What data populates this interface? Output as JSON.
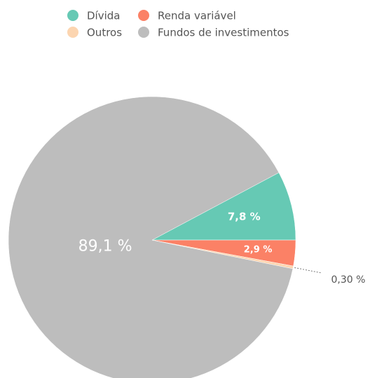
{
  "chart_data": {
    "type": "pie",
    "categories": [
      "Dívida",
      "Renda variável",
      "Outros",
      "Fundos de investimentos"
    ],
    "values": [
      7.8,
      2.9,
      0.3,
      89.1
    ],
    "value_labels": [
      "7,8 %",
      "2,9 %",
      "0,30 %",
      "89,1 %"
    ],
    "colors": [
      "#66c9b4",
      "#fb8166",
      "#fcd5b0",
      "#bdbdbd"
    ]
  }
}
